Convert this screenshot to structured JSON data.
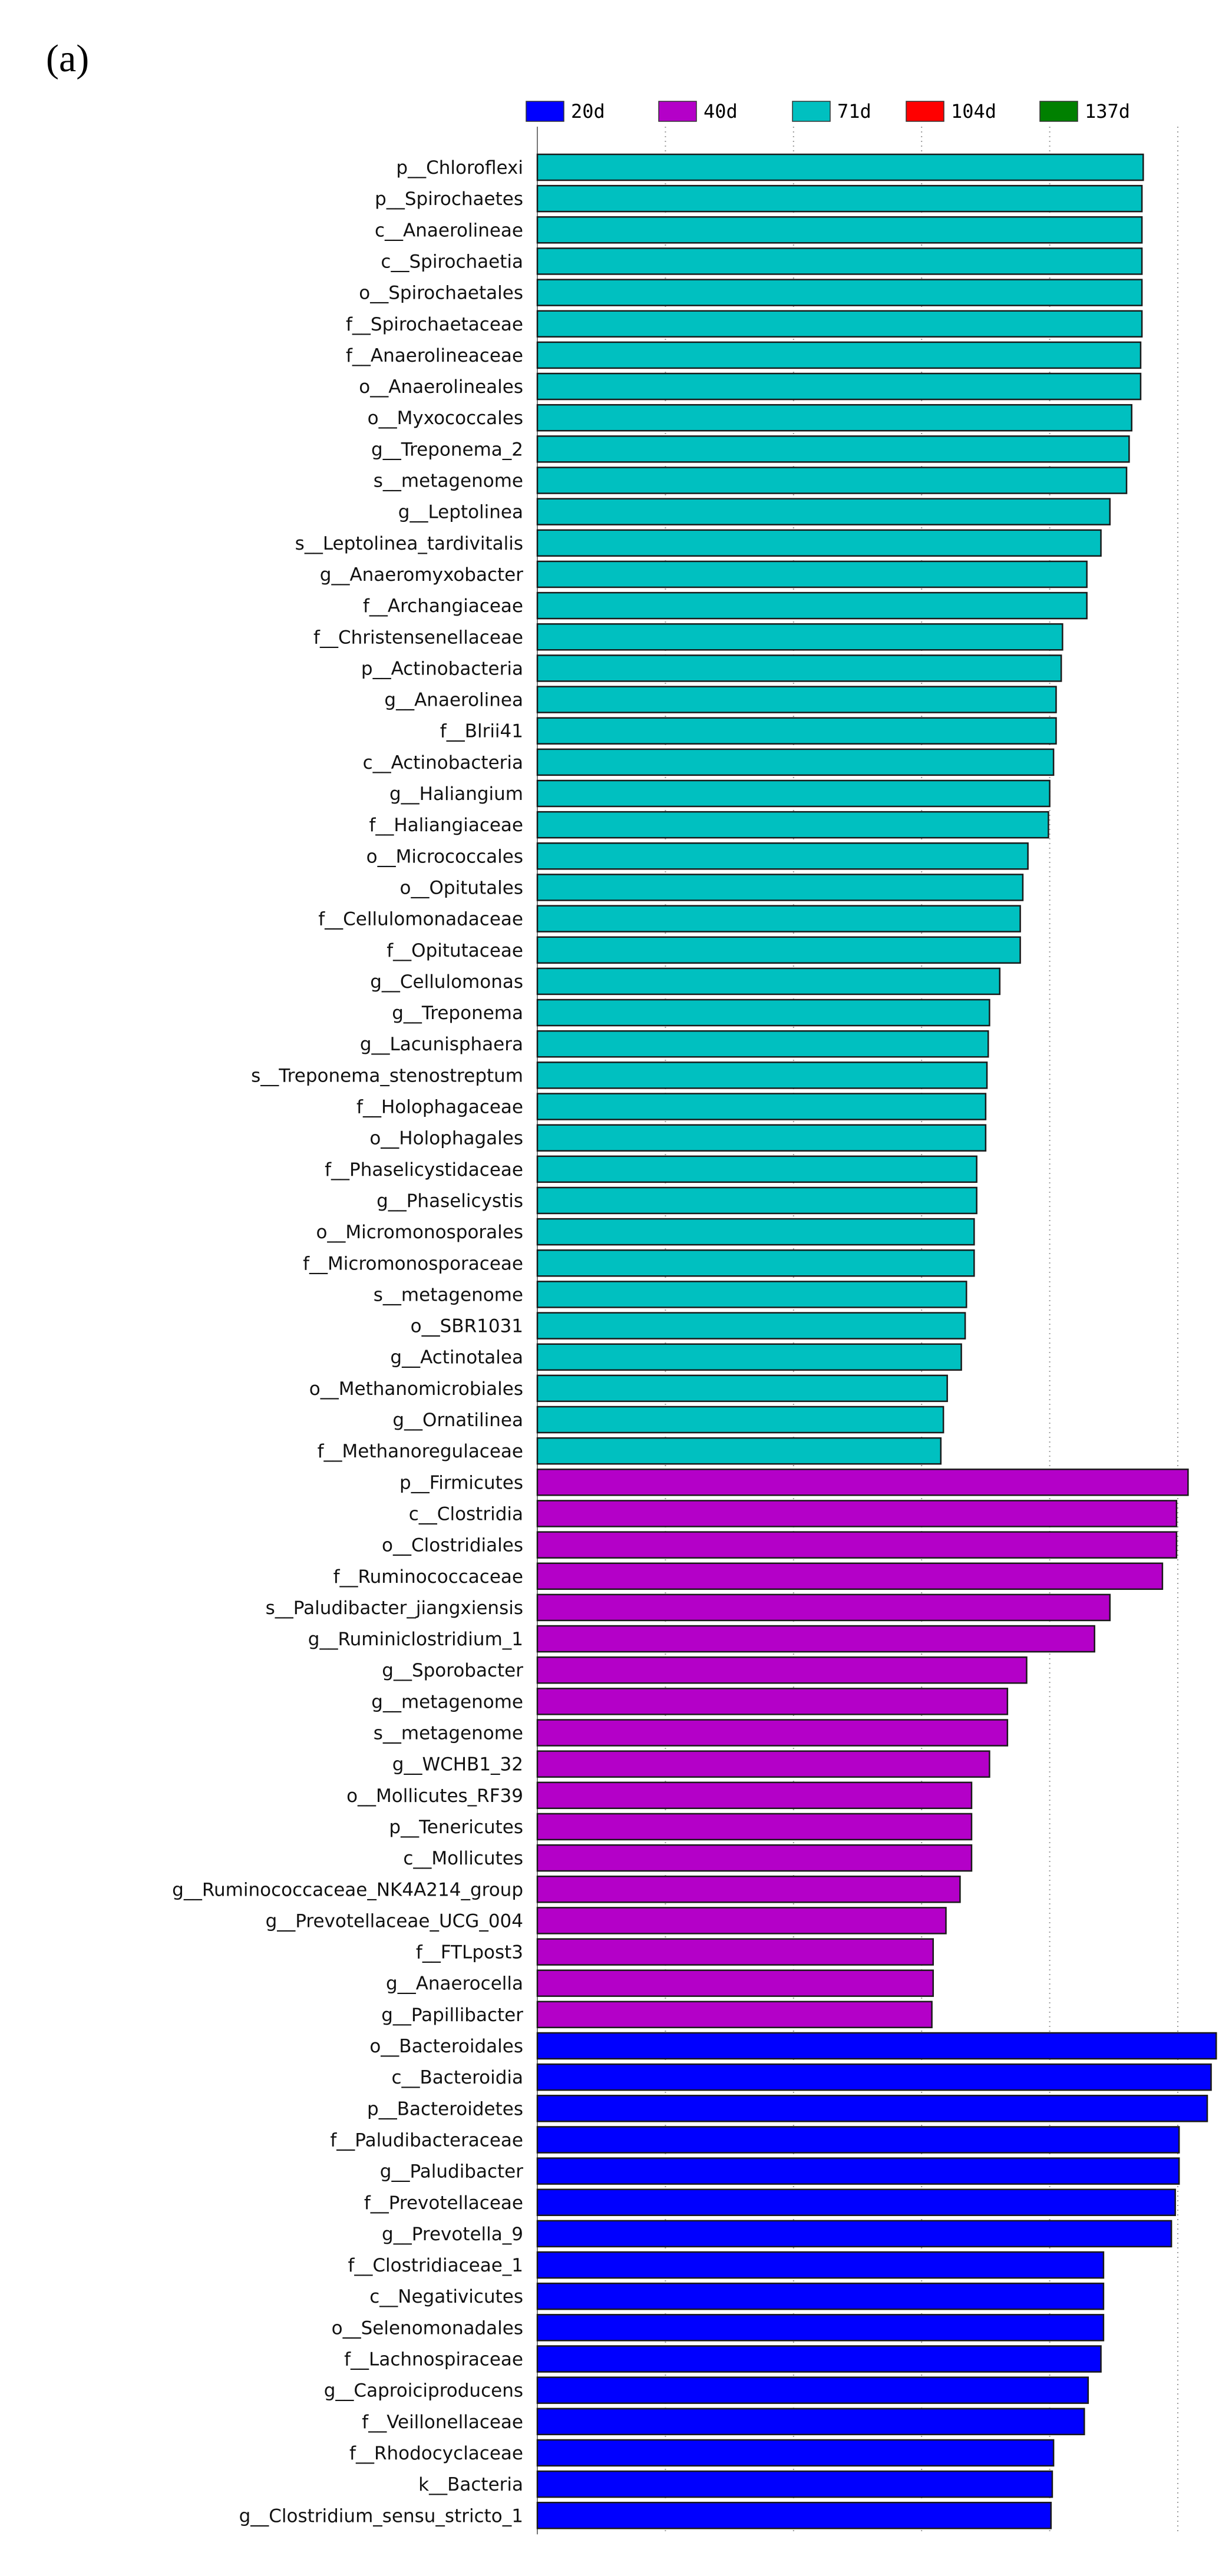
{
  "panel_label": "(a)",
  "chart_data": {
    "type": "bar",
    "orientation": "horizontal",
    "title": "",
    "xlabel": "",
    "ylabel": "",
    "xlim": [
      0,
      5.2
    ],
    "grid": true,
    "legend_position": "top",
    "legend": [
      {
        "label": "20d",
        "color": "#0000ff"
      },
      {
        "label": "40d",
        "color": "#b400c8"
      },
      {
        "label": "71d",
        "color": "#00c0c0"
      },
      {
        "label": "104d",
        "color": "#ff0000"
      },
      {
        "label": "137d",
        "color": "#008000"
      }
    ],
    "bars": [
      {
        "label": "p__Chloroflexi",
        "group": "71d",
        "value": 4.73
      },
      {
        "label": "p__Spirochaetes",
        "group": "71d",
        "value": 4.72
      },
      {
        "label": "c__Anaerolineae",
        "group": "71d",
        "value": 4.72
      },
      {
        "label": "c__Spirochaetia",
        "group": "71d",
        "value": 4.72
      },
      {
        "label": "o__Spirochaetales",
        "group": "71d",
        "value": 4.72
      },
      {
        "label": "f__Spirochaetaceae",
        "group": "71d",
        "value": 4.72
      },
      {
        "label": "f__Anaerolineaceae",
        "group": "71d",
        "value": 4.71
      },
      {
        "label": "o__Anaerolineales",
        "group": "71d",
        "value": 4.71
      },
      {
        "label": "o__Myxococcales",
        "group": "71d",
        "value": 4.64
      },
      {
        "label": "g__Treponema_2",
        "group": "71d",
        "value": 4.62
      },
      {
        "label": "s__metagenome",
        "group": "71d",
        "value": 4.6
      },
      {
        "label": "g__Leptolinea",
        "group": "71d",
        "value": 4.47
      },
      {
        "label": "s__Leptolinea_tardivitalis",
        "group": "71d",
        "value": 4.4
      },
      {
        "label": "g__Anaeromyxobacter",
        "group": "71d",
        "value": 4.29
      },
      {
        "label": "f__Archangiaceae",
        "group": "71d",
        "value": 4.29
      },
      {
        "label": "f__Christensenellaceae",
        "group": "71d",
        "value": 4.1
      },
      {
        "label": "p__Actinobacteria",
        "group": "71d",
        "value": 4.09
      },
      {
        "label": "g__Anaerolinea",
        "group": "71d",
        "value": 4.05
      },
      {
        "label": "f__Blrii41",
        "group": "71d",
        "value": 4.05
      },
      {
        "label": "c__Actinobacteria",
        "group": "71d",
        "value": 4.03
      },
      {
        "label": "g__Haliangium",
        "group": "71d",
        "value": 4.0
      },
      {
        "label": "f__Haliangiaceae",
        "group": "71d",
        "value": 3.99
      },
      {
        "label": "o__Micrococcales",
        "group": "71d",
        "value": 3.83
      },
      {
        "label": "o__Opitutales",
        "group": "71d",
        "value": 3.79
      },
      {
        "label": "f__Cellulomonadaceae",
        "group": "71d",
        "value": 3.77
      },
      {
        "label": "f__Opitutaceae",
        "group": "71d",
        "value": 3.77
      },
      {
        "label": "g__Cellulomonas",
        "group": "71d",
        "value": 3.61
      },
      {
        "label": "g__Treponema",
        "group": "71d",
        "value": 3.53
      },
      {
        "label": "g__Lacunisphaera",
        "group": "71d",
        "value": 3.52
      },
      {
        "label": "s__Treponema_stenostreptum",
        "group": "71d",
        "value": 3.51
      },
      {
        "label": "f__Holophagaceae",
        "group": "71d",
        "value": 3.5
      },
      {
        "label": "o__Holophagales",
        "group": "71d",
        "value": 3.5
      },
      {
        "label": "f__Phaselicystidaceae",
        "group": "71d",
        "value": 3.43
      },
      {
        "label": "g__Phaselicystis",
        "group": "71d",
        "value": 3.43
      },
      {
        "label": "o__Micromonosporales",
        "group": "71d",
        "value": 3.41
      },
      {
        "label": "f__Micromonosporaceae",
        "group": "71d",
        "value": 3.41
      },
      {
        "label": "s__metagenome",
        "group": "71d",
        "value": 3.35
      },
      {
        "label": "o__SBR1031",
        "group": "71d",
        "value": 3.34
      },
      {
        "label": "g__Actinotalea",
        "group": "71d",
        "value": 3.31
      },
      {
        "label": "o__Methanomicrobiales",
        "group": "71d",
        "value": 3.2
      },
      {
        "label": "g__Ornatilinea",
        "group": "71d",
        "value": 3.17
      },
      {
        "label": "f__Methanoregulaceae",
        "group": "71d",
        "value": 3.15
      },
      {
        "label": "p__Firmicutes",
        "group": "40d",
        "value": 5.08
      },
      {
        "label": "c__Clostridia",
        "group": "40d",
        "value": 4.99
      },
      {
        "label": "o__Clostridiales",
        "group": "40d",
        "value": 4.99
      },
      {
        "label": "f__Ruminococcaceae",
        "group": "40d",
        "value": 4.88
      },
      {
        "label": "s__Paludibacter_jiangxiensis",
        "group": "40d",
        "value": 4.47
      },
      {
        "label": "g__Ruminiclostridium_1",
        "group": "40d",
        "value": 4.35
      },
      {
        "label": "g__Sporobacter",
        "group": "40d",
        "value": 3.82
      },
      {
        "label": "g__metagenome",
        "group": "40d",
        "value": 3.67
      },
      {
        "label": "s__metagenome",
        "group": "40d",
        "value": 3.67
      },
      {
        "label": "g__WCHB1_32",
        "group": "40d",
        "value": 3.53
      },
      {
        "label": "o__Mollicutes_RF39",
        "group": "40d",
        "value": 3.39
      },
      {
        "label": "p__Tenericutes",
        "group": "40d",
        "value": 3.39
      },
      {
        "label": "c__Mollicutes",
        "group": "40d",
        "value": 3.39
      },
      {
        "label": "g__Ruminococcaceae_NK4A214_group",
        "group": "40d",
        "value": 3.3
      },
      {
        "label": "g__Prevotellaceae_UCG_004",
        "group": "40d",
        "value": 3.19
      },
      {
        "label": "f__FTLpost3",
        "group": "40d",
        "value": 3.09
      },
      {
        "label": "g__Anaerocella",
        "group": "40d",
        "value": 3.09
      },
      {
        "label": "g__Papillibacter",
        "group": "40d",
        "value": 3.08
      },
      {
        "label": "o__Bacteroidales",
        "group": "20d",
        "value": 5.3
      },
      {
        "label": "c__Bacteroidia",
        "group": "20d",
        "value": 5.26
      },
      {
        "label": "p__Bacteroidetes",
        "group": "20d",
        "value": 5.23
      },
      {
        "label": "f__Paludibacteraceae",
        "group": "20d",
        "value": 5.01
      },
      {
        "label": "g__Paludibacter",
        "group": "20d",
        "value": 5.01
      },
      {
        "label": "f__Prevotellaceae",
        "group": "20d",
        "value": 4.98
      },
      {
        "label": "g__Prevotella_9",
        "group": "20d",
        "value": 4.95
      },
      {
        "label": "f__Clostridiaceae_1",
        "group": "20d",
        "value": 4.42
      },
      {
        "label": "c__Negativicutes",
        "group": "20d",
        "value": 4.42
      },
      {
        "label": "o__Selenomonadales",
        "group": "20d",
        "value": 4.42
      },
      {
        "label": "f__Lachnospiraceae",
        "group": "20d",
        "value": 4.4
      },
      {
        "label": "g__Caproiciproducens",
        "group": "20d",
        "value": 4.3
      },
      {
        "label": "f__Veillonellaceae",
        "group": "20d",
        "value": 4.27
      },
      {
        "label": "f__Rhodocyclaceae",
        "group": "20d",
        "value": 4.03
      },
      {
        "label": "k__Bacteria",
        "group": "20d",
        "value": 4.02
      },
      {
        "label": "g__Clostridium_sensu_stricto_1",
        "group": "20d",
        "value": 4.01
      }
    ]
  }
}
